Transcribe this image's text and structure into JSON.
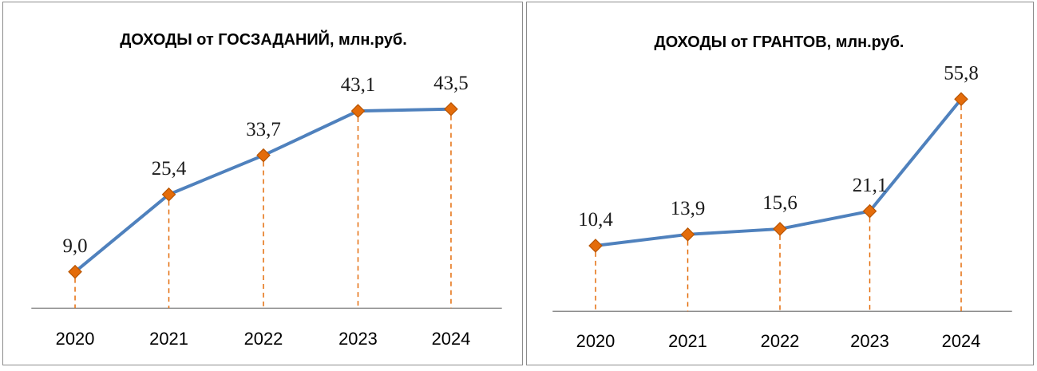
{
  "chart_data": [
    {
      "type": "line",
      "title": "ДОХОДЫ от ГОСЗАДАНИЙ, млн.руб.",
      "categories": [
        "2020",
        "2021",
        "2022",
        "2023",
        "2024"
      ],
      "values": [
        9.0,
        25.4,
        33.7,
        43.1,
        43.5
      ],
      "value_labels": [
        "9,0",
        "25,4",
        "33,7",
        "43,1",
        "43,5"
      ],
      "xlabel": "",
      "ylabel": "",
      "grid": false,
      "legend": "none",
      "drop_lines": true,
      "line_color": "#4f81bd",
      "marker_color": "#e46c0a",
      "drop_line_color": "#e46c0a"
    },
    {
      "type": "line",
      "title": "ДОХОДЫ от ГРАНТОВ, млн.руб.",
      "categories": [
        "2020",
        "2021",
        "2022",
        "2023",
        "2024"
      ],
      "values": [
        10.4,
        13.9,
        15.6,
        21.1,
        55.8
      ],
      "value_labels": [
        "10,4",
        "13,9",
        "15,6",
        "21,1",
        "55,8"
      ],
      "xlabel": "",
      "ylabel": "",
      "grid": false,
      "legend": "none",
      "drop_lines": true,
      "line_color": "#4f81bd",
      "marker_color": "#e46c0a",
      "drop_line_color": "#e46c0a"
    }
  ]
}
